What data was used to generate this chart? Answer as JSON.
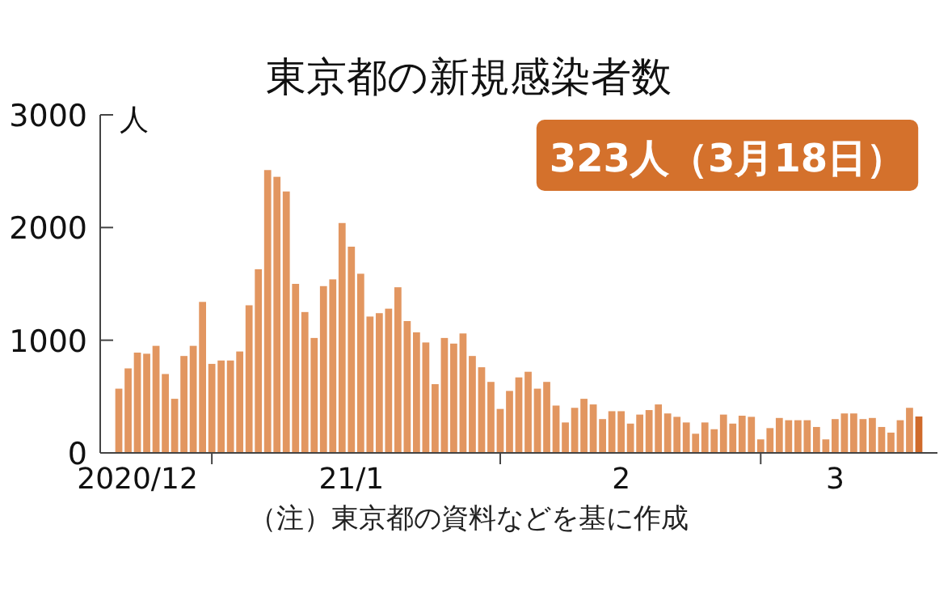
{
  "chart_data": {
    "type": "bar",
    "title": "東京都の新規感染者数",
    "ylabel": "人",
    "annotations": [
      "323人（3月18日）",
      "（注）東京都の資料などを基に作成"
    ],
    "xlim": [
      "2020-12-20",
      "2021-03-20"
    ],
    "xticks": [
      {
        "value": "2020-12-24",
        "label": "2020/12"
      },
      {
        "value": "2021-01-01",
        "label": null
      },
      {
        "value": "2021-01-16",
        "label": "21/1"
      },
      {
        "value": "2021-02-01",
        "label": null
      },
      {
        "value": "2021-02-14",
        "label": "2"
      },
      {
        "value": "2021-03-01",
        "label": null
      },
      {
        "value": "2021-03-09",
        "label": "3"
      }
    ],
    "ylim": [
      0,
      3000
    ],
    "yticks": [
      0,
      1000,
      2000,
      3000
    ],
    "grid": false,
    "series": [
      {
        "x": [
          "2020-12-22",
          "2020-12-23",
          "2020-12-24",
          "2020-12-25",
          "2020-12-26",
          "2020-12-27",
          "2020-12-28",
          "2020-12-29",
          "2020-12-30",
          "2020-12-31",
          "2021-01-01",
          "2021-01-02",
          "2021-01-03",
          "2021-01-04",
          "2021-01-05",
          "2021-01-06",
          "2021-01-07",
          "2021-01-08",
          "2021-01-09",
          "2021-01-10",
          "2021-01-11",
          "2021-01-12",
          "2021-01-13",
          "2021-01-14",
          "2021-01-15",
          "2021-01-16",
          "2021-01-17",
          "2021-01-18",
          "2021-01-19",
          "2021-01-20",
          "2021-01-21",
          "2021-01-22",
          "2021-01-23",
          "2021-01-24",
          "2021-01-25",
          "2021-01-26",
          "2021-01-27",
          "2021-01-28",
          "2021-01-29",
          "2021-01-30",
          "2021-01-31",
          "2021-02-01",
          "2021-02-02",
          "2021-02-03",
          "2021-02-04",
          "2021-02-05",
          "2021-02-06",
          "2021-02-07",
          "2021-02-08",
          "2021-02-09",
          "2021-02-10",
          "2021-02-11",
          "2021-02-12",
          "2021-02-13",
          "2021-02-14",
          "2021-02-15",
          "2021-02-16",
          "2021-02-17",
          "2021-02-18",
          "2021-02-19",
          "2021-02-20",
          "2021-02-21",
          "2021-02-22",
          "2021-02-23",
          "2021-02-24",
          "2021-02-25",
          "2021-02-26",
          "2021-02-27",
          "2021-02-28",
          "2021-03-01",
          "2021-03-02",
          "2021-03-03",
          "2021-03-04",
          "2021-03-05",
          "2021-03-06",
          "2021-03-07",
          "2021-03-08",
          "2021-03-09",
          "2021-03-10",
          "2021-03-11",
          "2021-03-12",
          "2021-03-13",
          "2021-03-14",
          "2021-03-15",
          "2021-03-16",
          "2021-03-17",
          "2021-03-18"
        ],
        "values": [
          570,
          750,
          890,
          880,
          950,
          700,
          480,
          860,
          950,
          1340,
          790,
          820,
          820,
          900,
          1310,
          1630,
          2510,
          2450,
          2320,
          1500,
          1250,
          1020,
          1480,
          1540,
          2040,
          1830,
          1590,
          1210,
          1240,
          1280,
          1470,
          1170,
          1070,
          980,
          610,
          1020,
          970,
          1060,
          860,
          760,
          630,
          390,
          550,
          670,
          720,
          570,
          630,
          420,
          270,
          400,
          480,
          430,
          300,
          370,
          370,
          260,
          340,
          380,
          430,
          350,
          320,
          270,
          170,
          270,
          210,
          340,
          260,
          330,
          320,
          120,
          220,
          310,
          290,
          290,
          290,
          230,
          120,
          300,
          350,
          350,
          300,
          310,
          230,
          180,
          290,
          400,
          323
        ],
        "colors": [
          "#e29660",
          "#e29660",
          "#e29660",
          "#e29660",
          "#e29660",
          "#e29660",
          "#e29660",
          "#e29660",
          "#e29660",
          "#e29660",
          "#e29660",
          "#e29660",
          "#e29660",
          "#e29660",
          "#e29660",
          "#e29660",
          "#e29660",
          "#e29660",
          "#e29660",
          "#e29660",
          "#e29660",
          "#e29660",
          "#e29660",
          "#e29660",
          "#e29660",
          "#e29660",
          "#e29660",
          "#e29660",
          "#e29660",
          "#e29660",
          "#e29660",
          "#e29660",
          "#e29660",
          "#e29660",
          "#e29660",
          "#e29660",
          "#e29660",
          "#e29660",
          "#e29660",
          "#e29660",
          "#e29660",
          "#e29660",
          "#e29660",
          "#e29660",
          "#e29660",
          "#e29660",
          "#e29660",
          "#e29660",
          "#e29660",
          "#e29660",
          "#e29660",
          "#e29660",
          "#e29660",
          "#e29660",
          "#e29660",
          "#e29660",
          "#e29660",
          "#e29660",
          "#e29660",
          "#e29660",
          "#e29660",
          "#e29660",
          "#e29660",
          "#e29660",
          "#e29660",
          "#e29660",
          "#e29660",
          "#e29660",
          "#e29660",
          "#e29660",
          "#e29660",
          "#e29660",
          "#e29660",
          "#e29660",
          "#e29660",
          "#e29660",
          "#e29660",
          "#e29660",
          "#e29660",
          "#e29660",
          "#e29660",
          "#e29660",
          "#e29660",
          "#e29660",
          "#e29660",
          "#e29660",
          "#d06a2a"
        ]
      }
    ]
  }
}
